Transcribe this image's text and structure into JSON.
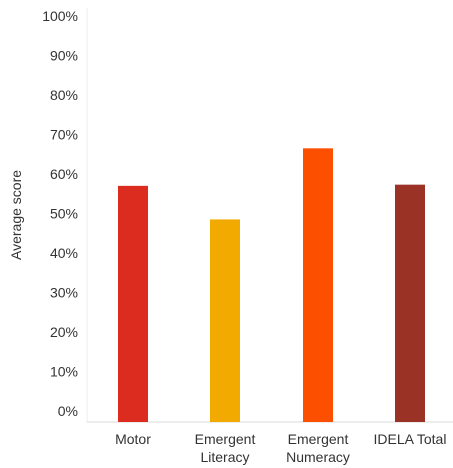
{
  "chart_data": {
    "type": "bar",
    "title": "",
    "xlabel": "",
    "ylabel": "Average score",
    "ylim": [
      0,
      100
    ],
    "y_ticks": [
      "0%",
      "10%",
      "20%",
      "30%",
      "40%",
      "50%",
      "60%",
      "70%",
      "80%",
      "90%",
      "100%"
    ],
    "categories": [
      {
        "lines": [
          "Motor"
        ]
      },
      {
        "lines": [
          "Emergent",
          "Literacy"
        ]
      },
      {
        "lines": [
          "Emergent",
          "Numeracy"
        ]
      },
      {
        "lines": [
          "IDELA Total"
        ]
      }
    ],
    "values": [
      57,
      48.5,
      66.5,
      57.3
    ],
    "colors": [
      "#dc2b1f",
      "#f2a900",
      "#fc4f00",
      "#9a3325"
    ],
    "grid": false,
    "legend": "none"
  }
}
